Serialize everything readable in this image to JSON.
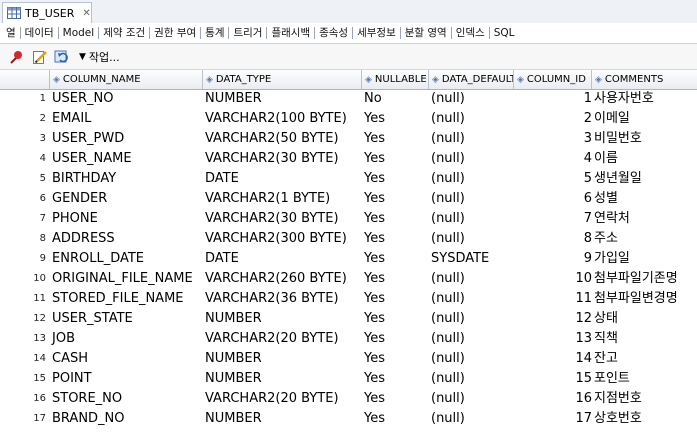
{
  "doc_tab": {
    "title": "TB_USER"
  },
  "subtabs": [
    "열",
    "데이터",
    "Model",
    "제약 조건",
    "권한 부여",
    "통계",
    "트리거",
    "플래시백",
    "종속성",
    "세부정보",
    "분할 영역",
    "인덱스",
    "SQL"
  ],
  "toolbar": {
    "actions_label": "작업..."
  },
  "columns": [
    "COLUMN_NAME",
    "DATA_TYPE",
    "NULLABLE",
    "DATA_DEFAULT",
    "COLUMN_ID",
    "COMMENTS"
  ],
  "rows": [
    {
      "n": "1",
      "name": "USER_NO",
      "type": "NUMBER",
      "nullable": "No",
      "def": "(null)",
      "id": "1",
      "comment": "사용자번호"
    },
    {
      "n": "2",
      "name": "EMAIL",
      "type": "VARCHAR2(100 BYTE)",
      "nullable": "Yes",
      "def": "(null)",
      "id": "2",
      "comment": "이메일"
    },
    {
      "n": "3",
      "name": "USER_PWD",
      "type": "VARCHAR2(50 BYTE)",
      "nullable": "Yes",
      "def": "(null)",
      "id": "3",
      "comment": "비밀번호"
    },
    {
      "n": "4",
      "name": "USER_NAME",
      "type": "VARCHAR2(30 BYTE)",
      "nullable": "Yes",
      "def": "(null)",
      "id": "4",
      "comment": "이름"
    },
    {
      "n": "5",
      "name": "BIRTHDAY",
      "type": "DATE",
      "nullable": "Yes",
      "def": "(null)",
      "id": "5",
      "comment": "생년월일"
    },
    {
      "n": "6",
      "name": "GENDER",
      "type": "VARCHAR2(1 BYTE)",
      "nullable": "Yes",
      "def": "(null)",
      "id": "6",
      "comment": "성별"
    },
    {
      "n": "7",
      "name": "PHONE",
      "type": "VARCHAR2(30 BYTE)",
      "nullable": "Yes",
      "def": "(null)",
      "id": "7",
      "comment": "연락처"
    },
    {
      "n": "8",
      "name": "ADDRESS",
      "type": "VARCHAR2(300 BYTE)",
      "nullable": "Yes",
      "def": "(null)",
      "id": "8",
      "comment": "주소"
    },
    {
      "n": "9",
      "name": "ENROLL_DATE",
      "type": "DATE",
      "nullable": "Yes",
      "def": "SYSDATE",
      "id": "9",
      "comment": "가입일"
    },
    {
      "n": "10",
      "name": "ORIGINAL_FILE_NAME",
      "type": "VARCHAR2(260 BYTE)",
      "nullable": "Yes",
      "def": "(null)",
      "id": "10",
      "comment": "첨부파일기존명"
    },
    {
      "n": "11",
      "name": "STORED_FILE_NAME",
      "type": "VARCHAR2(36 BYTE)",
      "nullable": "Yes",
      "def": "(null)",
      "id": "11",
      "comment": "첨부파일변경명"
    },
    {
      "n": "12",
      "name": "USER_STATE",
      "type": "NUMBER",
      "nullable": "Yes",
      "def": "(null)",
      "id": "12",
      "comment": "상태"
    },
    {
      "n": "13",
      "name": "JOB",
      "type": "VARCHAR2(20 BYTE)",
      "nullable": "Yes",
      "def": "(null)",
      "id": "13",
      "comment": "직책"
    },
    {
      "n": "14",
      "name": "CASH",
      "type": "NUMBER",
      "nullable": "Yes",
      "def": "(null)",
      "id": "14",
      "comment": "잔고"
    },
    {
      "n": "15",
      "name": "POINT",
      "type": "NUMBER",
      "nullable": "Yes",
      "def": "(null)",
      "id": "15",
      "comment": "포인트"
    },
    {
      "n": "16",
      "name": "STORE_NO",
      "type": "VARCHAR2(20 BYTE)",
      "nullable": "Yes",
      "def": "(null)",
      "id": "16",
      "comment": "지점번호"
    },
    {
      "n": "17",
      "name": "BRAND_NO",
      "type": "NUMBER",
      "nullable": "Yes",
      "def": "(null)",
      "id": "17",
      "comment": "상호번호"
    }
  ]
}
